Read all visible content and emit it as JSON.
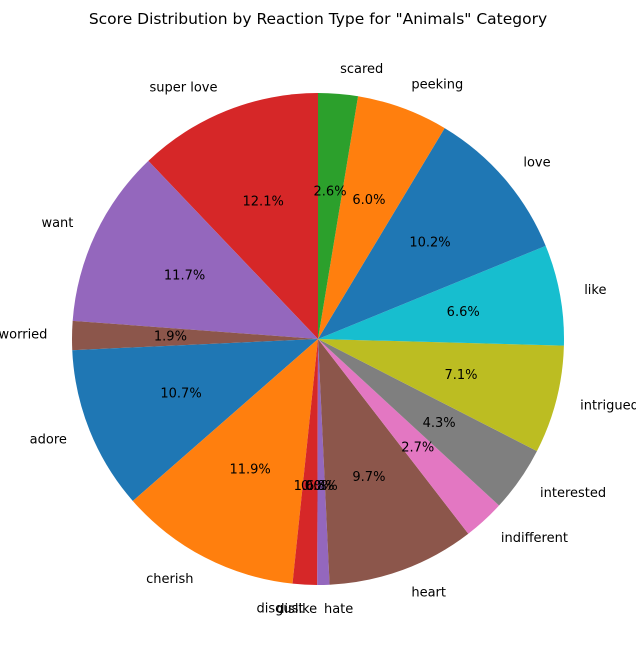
{
  "chart_data": {
    "type": "pie",
    "title": "Score Distribution by Reaction Type for \"Animals\" Category",
    "start_angle_deg": 90,
    "direction": "counterclockwise",
    "slices": [
      {
        "label": "super love",
        "value": 12.1,
        "pct_label": "12.1%",
        "color": "#d62728"
      },
      {
        "label": "want",
        "value": 11.7,
        "pct_label": "11.7%",
        "color": "#9467bd"
      },
      {
        "label": "worried",
        "value": 1.9,
        "pct_label": "1.9%",
        "color": "#8c564b"
      },
      {
        "label": "adore",
        "value": 10.7,
        "pct_label": "10.7%",
        "color": "#1f77b4"
      },
      {
        "label": "cherish",
        "value": 11.9,
        "pct_label": "11.9%",
        "color": "#ff7f0e"
      },
      {
        "label": "disgust",
        "value": 1.6,
        "pct_label": "1.6%",
        "color": "#d62728"
      },
      {
        "label": "dislike",
        "value": 0.0,
        "pct_label": "0.0%",
        "color": "#2ca02c"
      },
      {
        "label": "hate",
        "value": 0.8,
        "pct_label": "0.8%",
        "color": "#9467bd"
      },
      {
        "label": "heart",
        "value": 9.7,
        "pct_label": "9.7%",
        "color": "#8c564b"
      },
      {
        "label": "indifferent",
        "value": 2.7,
        "pct_label": "2.7%",
        "color": "#e377c2"
      },
      {
        "label": "interested",
        "value": 4.3,
        "pct_label": "4.3%",
        "color": "#7f7f7f"
      },
      {
        "label": "intrigued",
        "value": 7.1,
        "pct_label": "7.1%",
        "color": "#bcbd22"
      },
      {
        "label": "like",
        "value": 6.6,
        "pct_label": "6.6%",
        "color": "#17becf"
      },
      {
        "label": "love",
        "value": 10.2,
        "pct_label": "10.2%",
        "color": "#1f77b4"
      },
      {
        "label": "peeking",
        "value": 6.0,
        "pct_label": "6.0%",
        "color": "#ff7f0e"
      },
      {
        "label": "scared",
        "value": 2.6,
        "pct_label": "2.6%",
        "color": "#2ca02c"
      }
    ]
  }
}
